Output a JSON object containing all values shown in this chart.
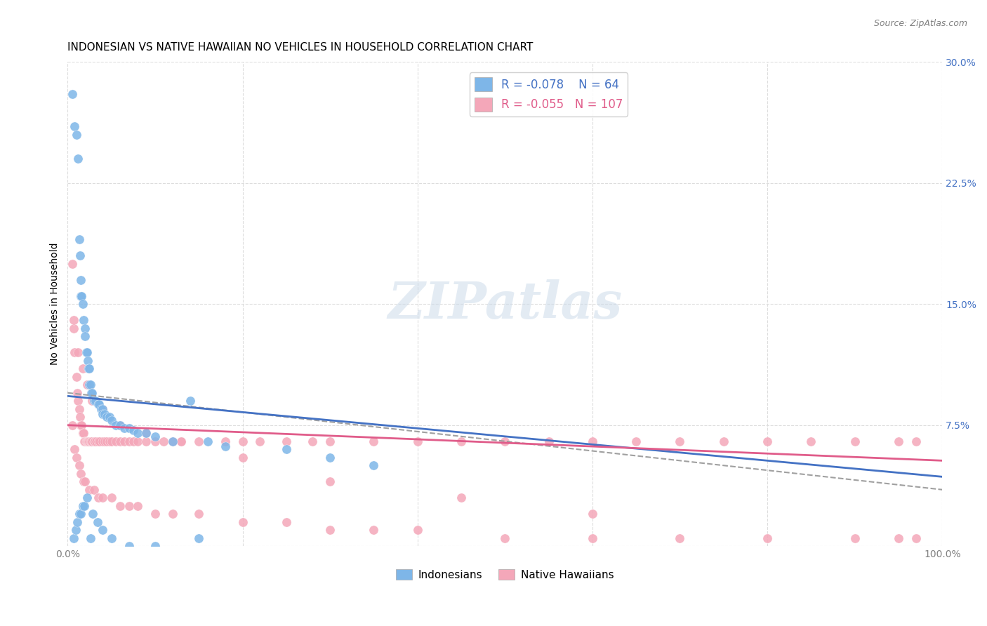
{
  "title": "INDONESIAN VS NATIVE HAWAIIAN NO VEHICLES IN HOUSEHOLD CORRELATION CHART",
  "source": "Source: ZipAtlas.com",
  "ylabel": "No Vehicles in Household",
  "xlabel": "",
  "xlim": [
    0.0,
    1.0
  ],
  "ylim": [
    0.0,
    0.3
  ],
  "x_ticks": [
    0.0,
    0.2,
    0.4,
    0.6,
    0.8,
    1.0
  ],
  "x_tick_labels": [
    "0.0%",
    "",
    "",
    "",
    "",
    "100.0%"
  ],
  "y_ticks": [
    0.0,
    0.075,
    0.15,
    0.225,
    0.3
  ],
  "y_tick_labels": [
    "",
    "7.5%",
    "15.0%",
    "22.5%",
    "30.0%"
  ],
  "indonesian_color": "#7EB6E8",
  "hawaiian_color": "#F4A7B9",
  "indonesian_line_color": "#4472C4",
  "hawaiian_line_color": "#E05C8A",
  "dashed_line_color": "#A0A0A0",
  "legend_R_indonesian": "R = -0.078",
  "legend_N_indonesian": "N =  64",
  "legend_R_hawaiian": "R = -0.055",
  "legend_N_hawaiian": "N = 107",
  "legend_label_indonesian": "Indonesians",
  "legend_label_hawaiian": "Native Hawaiians",
  "watermark": "ZIPatlas",
  "indonesian_R": -0.078,
  "hawaiian_R": -0.055,
  "indonesian_intercept": 0.093,
  "indonesian_slope": -0.05,
  "hawaiian_intercept": 0.075,
  "hawaiian_slope": -0.022,
  "dashed_intercept": 0.095,
  "dashed_slope": -0.06,
  "indonesian_x": [
    0.005,
    0.008,
    0.01,
    0.012,
    0.013,
    0.014,
    0.015,
    0.015,
    0.016,
    0.017,
    0.018,
    0.02,
    0.02,
    0.021,
    0.022,
    0.023,
    0.024,
    0.025,
    0.025,
    0.026,
    0.027,
    0.028,
    0.03,
    0.032,
    0.035,
    0.036,
    0.038,
    0.04,
    0.04,
    0.042,
    0.045,
    0.048,
    0.05,
    0.055,
    0.06,
    0.065,
    0.07,
    0.075,
    0.08,
    0.09,
    0.1,
    0.12,
    0.14,
    0.16,
    0.18,
    0.25,
    0.3,
    0.35,
    0.007,
    0.009,
    0.011,
    0.013,
    0.015,
    0.017,
    0.019,
    0.022,
    0.026,
    0.029,
    0.034,
    0.04,
    0.05,
    0.07,
    0.1,
    0.15
  ],
  "indonesian_y": [
    0.28,
    0.26,
    0.255,
    0.24,
    0.19,
    0.18,
    0.165,
    0.155,
    0.155,
    0.15,
    0.14,
    0.135,
    0.13,
    0.12,
    0.12,
    0.115,
    0.11,
    0.11,
    0.1,
    0.1,
    0.095,
    0.095,
    0.09,
    0.09,
    0.088,
    0.088,
    0.085,
    0.085,
    0.082,
    0.082,
    0.08,
    0.08,
    0.078,
    0.075,
    0.075,
    0.073,
    0.073,
    0.072,
    0.07,
    0.07,
    0.068,
    0.065,
    0.09,
    0.065,
    0.062,
    0.06,
    0.055,
    0.05,
    0.005,
    0.01,
    0.015,
    0.02,
    0.02,
    0.025,
    0.025,
    0.03,
    0.005,
    0.02,
    0.015,
    0.01,
    0.005,
    0.0,
    0.0,
    0.005
  ],
  "hawaiian_x": [
    0.005,
    0.007,
    0.008,
    0.01,
    0.011,
    0.012,
    0.013,
    0.014,
    0.015,
    0.016,
    0.017,
    0.018,
    0.019,
    0.02,
    0.021,
    0.022,
    0.023,
    0.024,
    0.025,
    0.026,
    0.027,
    0.028,
    0.03,
    0.031,
    0.033,
    0.035,
    0.037,
    0.04,
    0.042,
    0.045,
    0.048,
    0.05,
    0.055,
    0.06,
    0.065,
    0.07,
    0.075,
    0.08,
    0.09,
    0.1,
    0.11,
    0.12,
    0.13,
    0.15,
    0.18,
    0.2,
    0.22,
    0.25,
    0.28,
    0.3,
    0.35,
    0.4,
    0.45,
    0.5,
    0.55,
    0.6,
    0.65,
    0.7,
    0.75,
    0.8,
    0.85,
    0.9,
    0.95,
    0.97,
    0.005,
    0.008,
    0.01,
    0.013,
    0.015,
    0.018,
    0.02,
    0.025,
    0.03,
    0.035,
    0.04,
    0.05,
    0.06,
    0.07,
    0.08,
    0.1,
    0.12,
    0.15,
    0.2,
    0.25,
    0.3,
    0.35,
    0.4,
    0.5,
    0.6,
    0.7,
    0.8,
    0.9,
    0.95,
    0.97,
    0.007,
    0.012,
    0.017,
    0.022,
    0.028,
    0.04,
    0.06,
    0.09,
    0.13,
    0.2,
    0.3,
    0.45,
    0.6
  ],
  "hawaiian_y": [
    0.175,
    0.135,
    0.12,
    0.105,
    0.095,
    0.09,
    0.085,
    0.08,
    0.075,
    0.075,
    0.07,
    0.07,
    0.065,
    0.065,
    0.065,
    0.065,
    0.065,
    0.065,
    0.065,
    0.065,
    0.065,
    0.065,
    0.065,
    0.065,
    0.065,
    0.065,
    0.065,
    0.065,
    0.065,
    0.065,
    0.065,
    0.065,
    0.065,
    0.065,
    0.065,
    0.065,
    0.065,
    0.065,
    0.065,
    0.065,
    0.065,
    0.065,
    0.065,
    0.065,
    0.065,
    0.065,
    0.065,
    0.065,
    0.065,
    0.065,
    0.065,
    0.065,
    0.065,
    0.065,
    0.065,
    0.065,
    0.065,
    0.065,
    0.065,
    0.065,
    0.065,
    0.065,
    0.065,
    0.065,
    0.075,
    0.06,
    0.055,
    0.05,
    0.045,
    0.04,
    0.04,
    0.035,
    0.035,
    0.03,
    0.03,
    0.03,
    0.025,
    0.025,
    0.025,
    0.02,
    0.02,
    0.02,
    0.015,
    0.015,
    0.01,
    0.01,
    0.01,
    0.005,
    0.005,
    0.005,
    0.005,
    0.005,
    0.005,
    0.005,
    0.14,
    0.12,
    0.11,
    0.1,
    0.09,
    0.085,
    0.075,
    0.07,
    0.065,
    0.055,
    0.04,
    0.03,
    0.02
  ],
  "background_color": "#FFFFFF",
  "grid_color": "#DDDDDD",
  "title_fontsize": 11,
  "axis_label_fontsize": 10,
  "tick_fontsize": 10
}
